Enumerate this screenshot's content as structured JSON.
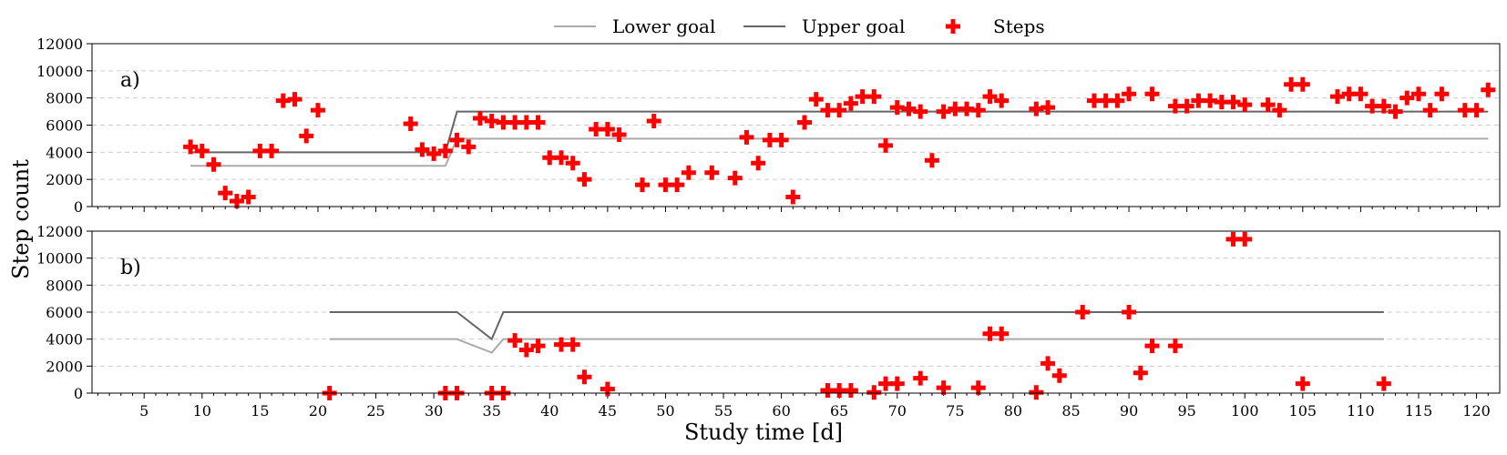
{
  "chart_data": {
    "type": "line",
    "ylabel": "Step count",
    "xlabel": "Study time [d]",
    "legend": {
      "placement": "top-center",
      "entries": [
        {
          "label": "Lower goal",
          "color": "#aaaaaa",
          "marker": "line"
        },
        {
          "label": "Upper goal",
          "color": "#666666",
          "marker": "line"
        },
        {
          "label": "Steps",
          "color": "#ff0000",
          "marker": "plus"
        }
      ]
    },
    "x_ticks": [
      5,
      10,
      15,
      20,
      25,
      30,
      35,
      40,
      45,
      50,
      55,
      60,
      65,
      70,
      75,
      80,
      85,
      90,
      95,
      100,
      105,
      110,
      115,
      120
    ],
    "y_ticks": [
      0,
      2000,
      4000,
      6000,
      8000,
      10000,
      12000
    ],
    "xlim": [
      0.5,
      122
    ],
    "ylim": [
      0,
      12000
    ],
    "grid": "horizontal dashed",
    "panels": [
      {
        "label": "a)",
        "lower_goal": {
          "x": [
            9,
            31,
            32,
            121
          ],
          "y": [
            3000,
            3000,
            5000,
            5000
          ]
        },
        "upper_goal": {
          "x": [
            9,
            31,
            32,
            121
          ],
          "y": [
            4000,
            4000,
            7000,
            7000
          ]
        },
        "steps": [
          [
            9,
            4400
          ],
          [
            10,
            4100
          ],
          [
            11,
            3100
          ],
          [
            12,
            1000
          ],
          [
            13,
            400
          ],
          [
            14,
            700
          ],
          [
            15,
            4100
          ],
          [
            16,
            4100
          ],
          [
            17,
            7800
          ],
          [
            18,
            7900
          ],
          [
            19,
            5200
          ],
          [
            20,
            7100
          ],
          [
            28,
            6100
          ],
          [
            29,
            4200
          ],
          [
            30,
            3900
          ],
          [
            31,
            4100
          ],
          [
            32,
            4900
          ],
          [
            33,
            4400
          ],
          [
            34,
            6500
          ],
          [
            35,
            6300
          ],
          [
            36,
            6200
          ],
          [
            37,
            6200
          ],
          [
            38,
            6200
          ],
          [
            39,
            6200
          ],
          [
            40,
            3600
          ],
          [
            41,
            3600
          ],
          [
            42,
            3200
          ],
          [
            43,
            2000
          ],
          [
            44,
            5700
          ],
          [
            45,
            5700
          ],
          [
            46,
            5300
          ],
          [
            48,
            1600
          ],
          [
            49,
            6300
          ],
          [
            50,
            1600
          ],
          [
            51,
            1600
          ],
          [
            52,
            2500
          ],
          [
            54,
            2500
          ],
          [
            56,
            2100
          ],
          [
            57,
            5100
          ],
          [
            58,
            3200
          ],
          [
            59,
            4900
          ],
          [
            60,
            4900
          ],
          [
            61,
            700
          ],
          [
            62,
            6200
          ],
          [
            63,
            7900
          ],
          [
            64,
            7100
          ],
          [
            65,
            7100
          ],
          [
            66,
            7600
          ],
          [
            67,
            8100
          ],
          [
            68,
            8100
          ],
          [
            69,
            4500
          ],
          [
            70,
            7300
          ],
          [
            71,
            7200
          ],
          [
            72,
            7000
          ],
          [
            73,
            3400
          ],
          [
            74,
            7000
          ],
          [
            75,
            7200
          ],
          [
            76,
            7200
          ],
          [
            77,
            7100
          ],
          [
            78,
            8100
          ],
          [
            79,
            7800
          ],
          [
            82,
            7200
          ],
          [
            83,
            7300
          ],
          [
            87,
            7800
          ],
          [
            88,
            7800
          ],
          [
            89,
            7800
          ],
          [
            90,
            8300
          ],
          [
            92,
            8300
          ],
          [
            94,
            7400
          ],
          [
            95,
            7400
          ],
          [
            96,
            7800
          ],
          [
            97,
            7800
          ],
          [
            98,
            7700
          ],
          [
            99,
            7700
          ],
          [
            100,
            7500
          ],
          [
            102,
            7500
          ],
          [
            103,
            7100
          ],
          [
            104,
            9000
          ],
          [
            105,
            9000
          ],
          [
            108,
            8100
          ],
          [
            109,
            8300
          ],
          [
            110,
            8300
          ],
          [
            111,
            7400
          ],
          [
            112,
            7400
          ],
          [
            113,
            7000
          ],
          [
            114,
            8000
          ],
          [
            115,
            8300
          ],
          [
            116,
            7100
          ],
          [
            117,
            8300
          ],
          [
            119,
            7100
          ],
          [
            120,
            7100
          ],
          [
            121,
            8600
          ]
        ]
      },
      {
        "label": "b)",
        "lower_goal": {
          "x": [
            21,
            32,
            35,
            36,
            112
          ],
          "y": [
            4000,
            4000,
            3000,
            4000,
            4000
          ]
        },
        "upper_goal": {
          "x": [
            21,
            32,
            35,
            36,
            112
          ],
          "y": [
            6000,
            6000,
            4000,
            6000,
            6000
          ]
        },
        "steps": [
          [
            21,
            0
          ],
          [
            31,
            0
          ],
          [
            32,
            0
          ],
          [
            35,
            0
          ],
          [
            36,
            0
          ],
          [
            37,
            3900
          ],
          [
            38,
            3200
          ],
          [
            39,
            3500
          ],
          [
            41,
            3600
          ],
          [
            42,
            3600
          ],
          [
            43,
            1200
          ],
          [
            45,
            300
          ],
          [
            64,
            200
          ],
          [
            65,
            200
          ],
          [
            66,
            200
          ],
          [
            68,
            50
          ],
          [
            69,
            700
          ],
          [
            70,
            700
          ],
          [
            72,
            1100
          ],
          [
            74,
            400
          ],
          [
            77,
            400
          ],
          [
            78,
            4400
          ],
          [
            79,
            4400
          ],
          [
            82,
            50
          ],
          [
            83,
            2200
          ],
          [
            84,
            1300
          ],
          [
            86,
            6000
          ],
          [
            90,
            6000
          ],
          [
            91,
            1500
          ],
          [
            92,
            3500
          ],
          [
            94,
            3500
          ],
          [
            99,
            11400
          ],
          [
            100,
            11400
          ],
          [
            105,
            700
          ],
          [
            112,
            700
          ]
        ]
      }
    ]
  }
}
